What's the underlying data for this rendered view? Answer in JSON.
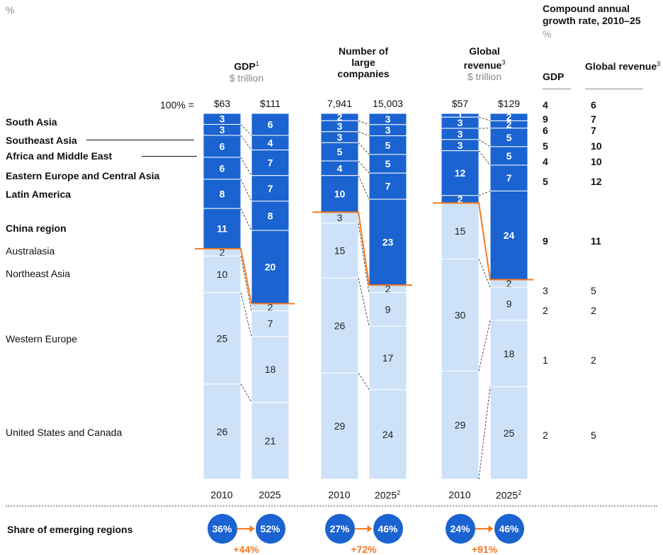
{
  "unit_label": "%",
  "cagr": {
    "title": "Compound annual growth rate, 2010–25",
    "unit": "%",
    "col_gdp": "GDP",
    "col_rev": "Global revenue",
    "col_rev_sup": "3",
    "rows": [
      {
        "gdp": "4",
        "rev": "6",
        "bold": true
      },
      {
        "gdp": "9",
        "rev": "7",
        "bold": true
      },
      {
        "gdp": "6",
        "rev": "7",
        "bold": true
      },
      {
        "gdp": "5",
        "rev": "10",
        "bold": true
      },
      {
        "gdp": "4",
        "rev": "10",
        "bold": true
      },
      {
        "gdp": "5",
        "rev": "12",
        "bold": true
      },
      {
        "gdp": "9",
        "rev": "11",
        "bold": true
      },
      {
        "gdp": "3",
        "rev": "5",
        "bold": false
      },
      {
        "gdp": "2",
        "rev": "2",
        "bold": false
      },
      {
        "gdp": "1",
        "rev": "2",
        "bold": false
      },
      {
        "gdp": "2",
        "rev": "5",
        "bold": false
      }
    ]
  },
  "hundred_label": "100% =",
  "regions": [
    {
      "name": "South Asia",
      "emerging": true
    },
    {
      "name": "Southeast Asia",
      "emerging": true
    },
    {
      "name": "Africa and Middle East",
      "emerging": true
    },
    {
      "name": "Eastern Europe and Central Asia",
      "emerging": true
    },
    {
      "name": "Latin America",
      "emerging": true
    },
    {
      "name": "China region",
      "emerging": true
    },
    {
      "name": "Australasia",
      "emerging": false
    },
    {
      "name": "Northeast Asia",
      "emerging": false
    },
    {
      "name": "Western Europe",
      "emerging": false
    },
    {
      "name": "United States and Canada",
      "emerging": false
    }
  ],
  "share_label": "Share of emerging regions",
  "colors": {
    "emerging": "#1a63d1",
    "developed": "#cde2f8",
    "divider": "#f47a20",
    "accent": "#f47a20"
  },
  "chart_data": [
    {
      "type": "bar",
      "title": "GDP",
      "title_sup": "1",
      "subtitle": "$ trillion",
      "categories": [
        "2010",
        "2025"
      ],
      "category_sups": [
        "",
        ""
      ],
      "totals": [
        "$63",
        "$111"
      ],
      "series": [
        {
          "name": "South Asia",
          "values": [
            3,
            6
          ]
        },
        {
          "name": "Southeast Asia",
          "values": [
            3,
            4
          ]
        },
        {
          "name": "Africa and Middle East",
          "values": [
            6,
            7
          ]
        },
        {
          "name": "Eastern Europe and Central Asia",
          "values": [
            6,
            7
          ]
        },
        {
          "name": "Latin America",
          "values": [
            8,
            8
          ]
        },
        {
          "name": "China region",
          "values": [
            11,
            20
          ]
        },
        {
          "name": "Australasia",
          "values": [
            2,
            2
          ]
        },
        {
          "name": "Northeast Asia",
          "values": [
            10,
            7
          ]
        },
        {
          "name": "Western Europe",
          "values": [
            25,
            18
          ]
        },
        {
          "name": "United States and Canada",
          "values": [
            26,
            21
          ]
        }
      ],
      "emerging_share": [
        "36%",
        "52%"
      ],
      "growth": "+44%"
    },
    {
      "type": "bar",
      "title": "Number of large companies",
      "title_sup": "",
      "subtitle": "",
      "categories": [
        "2010",
        "2025"
      ],
      "category_sups": [
        "",
        "2"
      ],
      "totals": [
        "7,941",
        "15,003"
      ],
      "series": [
        {
          "name": "South Asia",
          "values": [
            2,
            3
          ]
        },
        {
          "name": "Southeast Asia",
          "values": [
            3,
            3
          ]
        },
        {
          "name": "Africa and Middle East",
          "values": [
            3,
            5
          ]
        },
        {
          "name": "Eastern Europe and Central Asia",
          "values": [
            5,
            5
          ]
        },
        {
          "name": "Latin America",
          "values": [
            4,
            7
          ]
        },
        {
          "name": "China region",
          "values": [
            10,
            23
          ]
        },
        {
          "name": "Australasia",
          "values": [
            3,
            2
          ]
        },
        {
          "name": "Northeast Asia",
          "values": [
            15,
            9
          ]
        },
        {
          "name": "Western Europe",
          "values": [
            26,
            17
          ]
        },
        {
          "name": "United States and Canada",
          "values": [
            29,
            24
          ]
        }
      ],
      "emerging_share": [
        "27%",
        "46%"
      ],
      "growth": "+72%"
    },
    {
      "type": "bar",
      "title": "Global revenue",
      "title_sup": "3",
      "subtitle": "$ trillion",
      "categories": [
        "2010",
        "2025"
      ],
      "category_sups": [
        "",
        "2"
      ],
      "totals": [
        "$57",
        "$129"
      ],
      "series": [
        {
          "name": "South Asia",
          "values": [
            1,
            2
          ]
        },
        {
          "name": "Southeast Asia",
          "values": [
            3,
            2
          ]
        },
        {
          "name": "Africa and Middle East",
          "values": [
            3,
            5
          ]
        },
        {
          "name": "Eastern Europe and Central Asia",
          "values": [
            3,
            5
          ]
        },
        {
          "name": "Latin America",
          "values": [
            12,
            7
          ]
        },
        {
          "name": "China region",
          "values": [
            2,
            24
          ]
        },
        {
          "name": "Australasia",
          "values": [
            15,
            2
          ]
        },
        {
          "name": "Northeast Asia",
          "values": [
            30,
            9
          ]
        },
        {
          "name": "Western Europe",
          "values": [
            29,
            18
          ]
        },
        {
          "name": "United States and Canada",
          "values": [
            0,
            25
          ]
        }
      ],
      "emerging_share": [
        "24%",
        "46%"
      ],
      "growth": "+91%"
    }
  ]
}
